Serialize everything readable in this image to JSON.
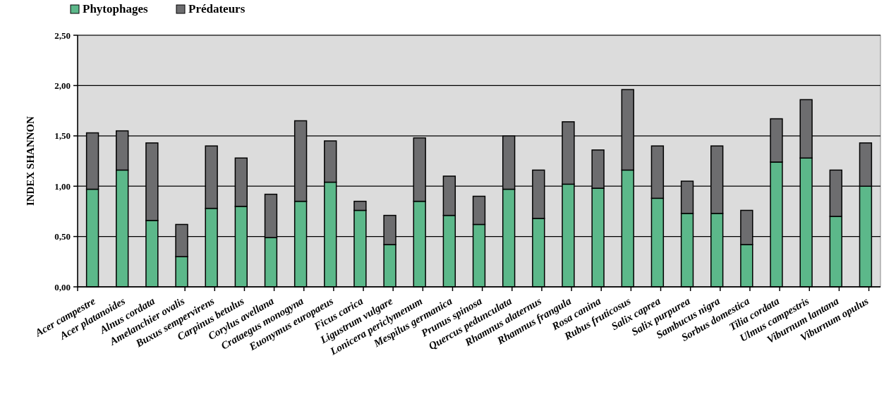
{
  "chart_data": {
    "type": "bar",
    "stacked": true,
    "ylabel": "INDEX SHANNON",
    "categories": [
      "Acer campestre",
      "Acer platanoides",
      "Alnus cordata",
      "Amelanchier ovalis",
      "Buxus sempervirens",
      "Carpinus betulus",
      "Corylus avellana",
      "Crataegus monogyna",
      "Euonymus europaeus",
      "Ficus carica",
      "Ligustrum vulgare",
      "Lonicera periclymenum",
      "Mespilus germanica",
      "Prunus spinosa",
      "Quercus pedunculata",
      "Rhamnus alaternus",
      "Rhamnus frangula",
      "Rosa canina",
      "Rubus fruticosus",
      "Salix caprea",
      "Salix purpurea",
      "Sambucus nigra",
      "Sorbus domestica",
      "Tilia cordata",
      "Ulmus campestris",
      "Viburnum lantana",
      "Viburnum opulus"
    ],
    "series": [
      {
        "name": "Phytophages",
        "color": "#5cb88a",
        "values": [
          0.97,
          1.16,
          0.66,
          0.3,
          0.78,
          0.8,
          0.49,
          0.85,
          1.04,
          0.76,
          0.42,
          0.85,
          0.71,
          0.62,
          0.97,
          0.68,
          1.02,
          0.98,
          1.16,
          0.88,
          0.73,
          0.73,
          0.42,
          1.24,
          1.28,
          0.7,
          1.0
        ]
      },
      {
        "name": "Prédateurs",
        "color": "#6d6d6f",
        "values": [
          0.56,
          0.39,
          0.77,
          0.32,
          0.62,
          0.48,
          0.43,
          0.8,
          0.41,
          0.09,
          0.29,
          0.63,
          0.39,
          0.28,
          0.53,
          0.48,
          0.62,
          0.38,
          0.8,
          0.52,
          0.32,
          0.67,
          0.34,
          0.43,
          0.58,
          0.46,
          0.43
        ]
      }
    ],
    "ylim": [
      0,
      2.5
    ],
    "yticks": [
      {
        "value": 0,
        "label": "0,00"
      },
      {
        "value": 0.5,
        "label": "0,50"
      },
      {
        "value": 1,
        "label": "1,00"
      },
      {
        "value": 1.5,
        "label": "1,50"
      },
      {
        "value": 2,
        "label": "2,00"
      },
      {
        "value": 2.5,
        "label": "2,50"
      }
    ],
    "grid": "y",
    "legend": "top left"
  }
}
